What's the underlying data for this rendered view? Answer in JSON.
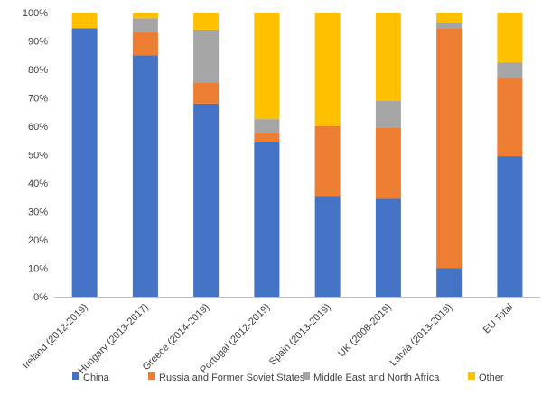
{
  "chart_data": {
    "type": "bar",
    "stacked": true,
    "orientation": "vertical",
    "categories": [
      "Ireland (2012-2019)",
      "Hungary (2013-2017)",
      "Greece (2014-2019)",
      "Portugal (2012-2019)",
      "Spain (2013-2019)",
      "UK (2008-2019)",
      "Latvia (2013-2019)",
      "EU Total"
    ],
    "series": [
      {
        "name": "China",
        "color": "#4472C4",
        "values": [
          94.5,
          85.0,
          68.0,
          54.5,
          35.5,
          34.5,
          10.0,
          49.5
        ]
      },
      {
        "name": "Russia and Former Soviet States",
        "color": "#ED7D31",
        "values": [
          0.0,
          8.0,
          7.5,
          3.0,
          24.5,
          25.0,
          84.5,
          27.5
        ]
      },
      {
        "name": "Middle East and North Africa",
        "color": "#A5A5A5",
        "values": [
          0.0,
          5.0,
          18.5,
          5.0,
          0.0,
          9.5,
          2.0,
          5.5
        ]
      },
      {
        "name": "Other",
        "color": "#FFC000",
        "values": [
          5.5,
          2.0,
          6.0,
          37.5,
          40.0,
          31.0,
          3.5,
          17.5
        ]
      }
    ],
    "y_ticks": [
      "0%",
      "10%",
      "20%",
      "30%",
      "40%",
      "50%",
      "60%",
      "70%",
      "80%",
      "90%",
      "100%"
    ],
    "ylim": [
      0,
      100
    ],
    "grid": false,
    "legend_position": "bottom"
  }
}
